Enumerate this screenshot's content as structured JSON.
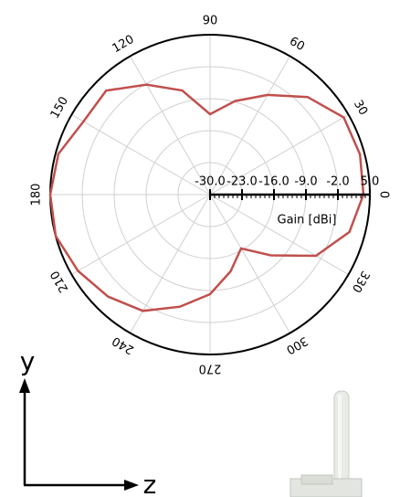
{
  "chart_data": {
    "type": "polar",
    "theta": [
      0,
      15,
      30,
      45,
      60,
      75,
      90,
      105,
      120,
      135,
      150,
      165,
      180,
      195,
      210,
      225,
      240,
      255,
      270,
      285,
      300,
      315,
      330,
      345
    ],
    "values": [
      3.6,
      4.0,
      3.8,
      0.2,
      -4.8,
      -8.8,
      -12.4,
      -6.4,
      -2.2,
      2.2,
      2.0,
      4.4,
      5.0,
      5.0,
      3.4,
      1.6,
      -0.6,
      -4.6,
      -8.2,
      -12.6,
      -16.4,
      -11.2,
      -3.2,
      1.6
    ],
    "color": "#c0504d",
    "rlim": [
      -30,
      5
    ],
    "rticks": [
      {
        "value": -30,
        "label": "-30.0"
      },
      {
        "value": -23,
        "label": "-23.0"
      },
      {
        "value": -16,
        "label": "-16.0"
      },
      {
        "value": -9,
        "label": "-9.0"
      },
      {
        "value": -2,
        "label": "-2.0"
      },
      {
        "value": 5,
        "label": "5.0"
      }
    ],
    "thetaticks": [
      0,
      30,
      60,
      90,
      120,
      150,
      180,
      210,
      240,
      270,
      300,
      330
    ],
    "r_label": "Gain [dBi]",
    "grid": true,
    "annotations": [
      "y",
      "z"
    ]
  }
}
